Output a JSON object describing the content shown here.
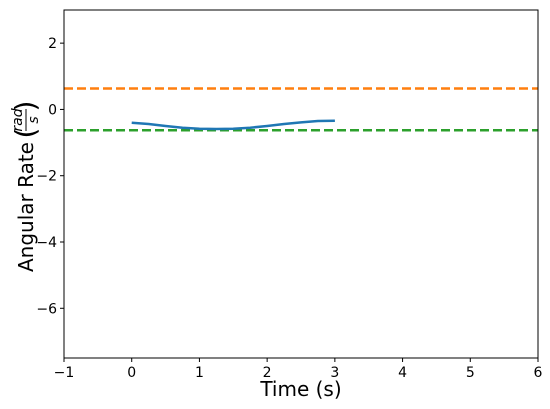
{
  "chart_data": {
    "type": "line",
    "title": "",
    "xlabel": "Time (s)",
    "ylabel": "Angular Rate",
    "ylabel_unit_numerator": "rad",
    "ylabel_unit_denominator": "s",
    "xlim": [
      -1,
      6
    ],
    "ylim": [
      -7.5,
      3.0
    ],
    "xticks": [
      -1,
      0,
      1,
      2,
      3,
      4,
      5,
      6
    ],
    "yticks": [
      2,
      0,
      -2,
      -4,
      -6
    ],
    "xtick_labels": [
      "−1",
      "0",
      "1",
      "2",
      "3",
      "4",
      "5",
      "6"
    ],
    "ytick_labels": [
      "2",
      "0",
      "−2",
      "−4",
      "−6"
    ],
    "grid": false,
    "legend": "none",
    "series": [
      {
        "style": "solid",
        "color": "#1f77b4",
        "x": [
          0,
          0.25,
          0.5,
          0.75,
          1.0,
          1.25,
          1.5,
          1.75,
          2.0,
          2.25,
          2.5,
          2.75,
          3.0
        ],
        "y": [
          -0.4,
          -0.44,
          -0.5,
          -0.55,
          -0.58,
          -0.59,
          -0.58,
          -0.55,
          -0.5,
          -0.44,
          -0.39,
          -0.35,
          -0.34
        ]
      }
    ],
    "hlines": [
      {
        "style": "dashed",
        "color": "#ff7f0e",
        "y": 0.63
      },
      {
        "style": "dashed",
        "color": "#2ca02c",
        "y": -0.63
      }
    ]
  }
}
